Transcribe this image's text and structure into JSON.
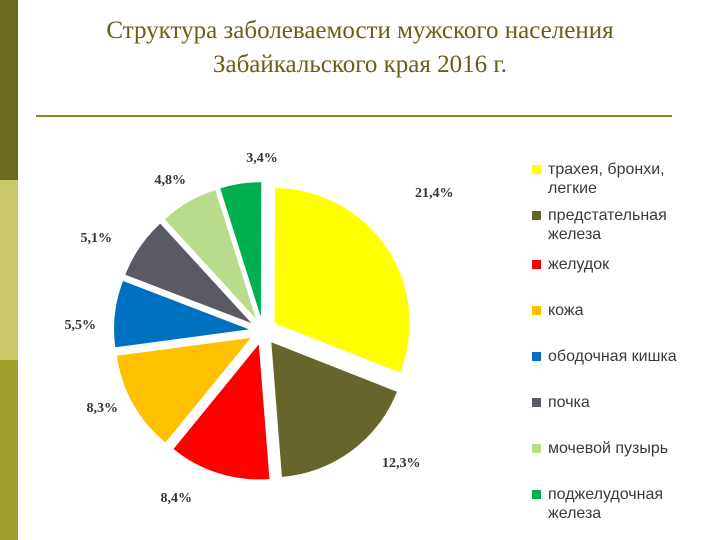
{
  "title": {
    "line1": "Структура заболеваемости мужского населения",
    "line2": "Забайкальского края 2016 г."
  },
  "chart_data": {
    "type": "pie",
    "title": "Структура заболеваемости мужского населения Забайкальского края 2016 г.",
    "legend_position": "right",
    "slices": [
      {
        "name": "трахея, бронхи, легкие",
        "value": 21.4,
        "label": "21,4%",
        "color": "#ffff00"
      },
      {
        "name": "предстательная железа",
        "value": 12.3,
        "label": "12,3%",
        "color": "#66662c"
      },
      {
        "name": "желудок",
        "value": 8.4,
        "label": "8,4%",
        "color": "#ff0000"
      },
      {
        "name": "кожа",
        "value": 8.3,
        "label": "8,3%",
        "color": "#ffc000"
      },
      {
        "name": "ободочная кишка",
        "value": 5.5,
        "label": "5,5%",
        "color": "#0070c0"
      },
      {
        "name": "почка",
        "value": 5.1,
        "label": "5,1%",
        "color": "#5a5a64"
      },
      {
        "name": "мочевой пузырь",
        "value": 4.8,
        "label": "4,8%",
        "color": "#b8dc8c"
      },
      {
        "name": "поджелудочная железа",
        "value": 3.4,
        "label": "3,4%",
        "color": "#00b050"
      }
    ]
  }
}
